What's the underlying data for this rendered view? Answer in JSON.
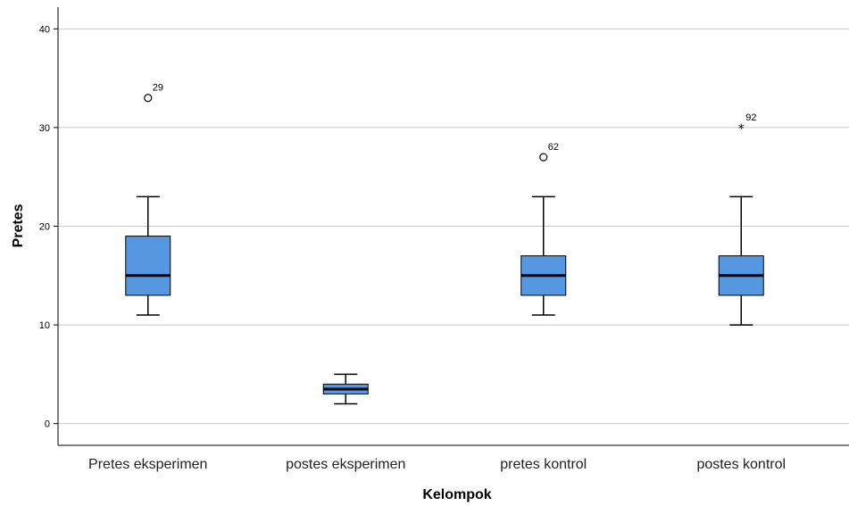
{
  "chart_data": {
    "type": "boxplot",
    "xlabel": "Kelompok",
    "ylabel": "Pretes",
    "ylim": [
      -2.2,
      42.2
    ],
    "yticks": [
      0,
      10,
      20,
      30,
      40
    ],
    "grid": true,
    "box_color": "#5597e0",
    "categories": [
      "Pretes eksperimen",
      "postes eksperimen",
      "pretes kontrol",
      "postes kontrol"
    ],
    "boxes": [
      {
        "category": "Pretes eksperimen",
        "min": 11,
        "q1": 13,
        "median": 15,
        "q3": 19,
        "max": 23,
        "outliers": [
          {
            "value": 33,
            "label": "29",
            "marker": "circle"
          }
        ]
      },
      {
        "category": "postes eksperimen",
        "min": 2,
        "q1": 3,
        "median": 3.5,
        "q3": 4,
        "max": 5,
        "outliers": []
      },
      {
        "category": "pretes kontrol",
        "min": 11,
        "q1": 13,
        "median": 15,
        "q3": 17,
        "max": 23,
        "outliers": [
          {
            "value": 27,
            "label": "62",
            "marker": "circle"
          }
        ]
      },
      {
        "category": "postes kontrol",
        "min": 10,
        "q1": 13,
        "median": 15,
        "q3": 17,
        "max": 23,
        "outliers": [
          {
            "value": 30,
            "label": "92",
            "marker": "star"
          }
        ]
      }
    ]
  }
}
